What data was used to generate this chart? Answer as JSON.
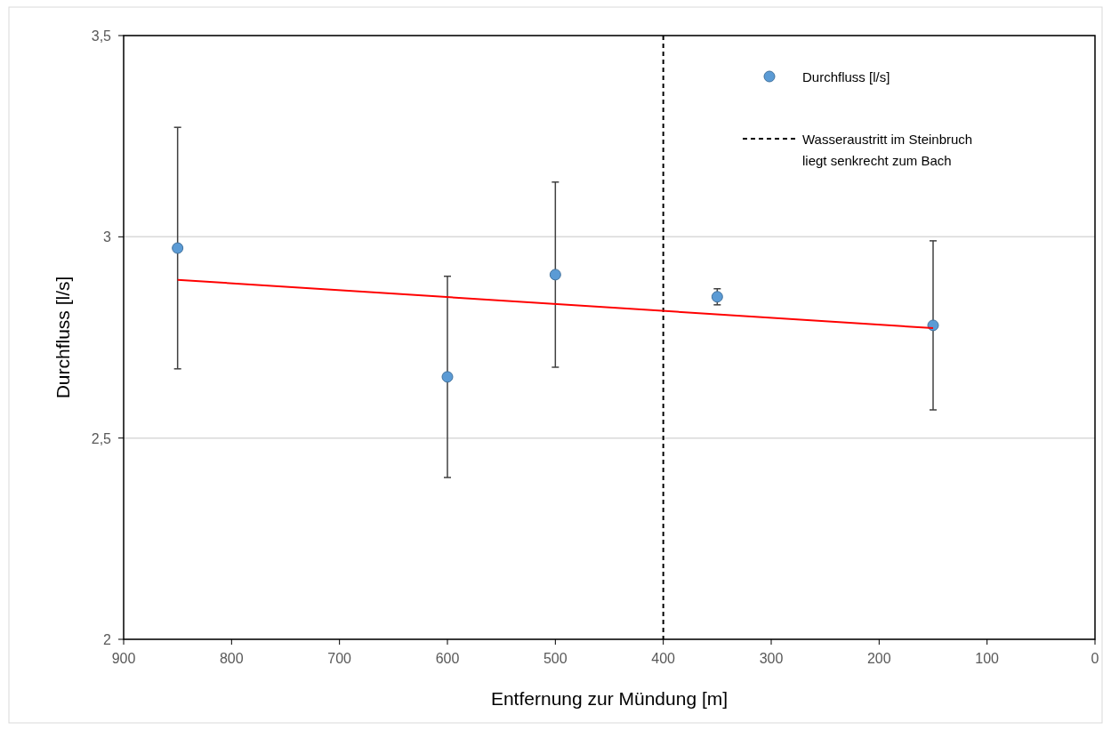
{
  "chart_data": {
    "type": "scatter",
    "xlabel": "Entfernung zur Mündung [m]",
    "ylabel": "Durchfluss [l/s]",
    "series": [
      {
        "name": "Durchfluss [l/s]",
        "marker": "circle",
        "color": "#5b9bd5",
        "x": [
          850,
          600,
          500,
          350,
          150
        ],
        "values": [
          2.972,
          2.652,
          2.906,
          2.851,
          2.78
        ],
        "errors": [
          0.3,
          0.25,
          0.23,
          0.02,
          0.21
        ]
      },
      {
        "type": "line",
        "color": "#ff0000",
        "x": [
          850,
          150
        ],
        "values": [
          2.893,
          2.773
        ]
      }
    ],
    "ref_lines": [
      {
        "axis": "x",
        "value": 400,
        "label": "Wasseraustritt im Steinbruch liegt senkrecht zum Bach",
        "color": "#000000",
        "line_style": "dashed"
      }
    ],
    "xlim": [
      900,
      0
    ],
    "xticks": [
      900,
      800,
      700,
      600,
      500,
      400,
      300,
      200,
      100,
      0
    ],
    "ylim": [
      2,
      3.5
    ],
    "yticks": [
      2,
      {
        "value": 2.5,
        "label": "2,5"
      },
      3,
      {
        "value": 3.5,
        "label": "3,5"
      }
    ],
    "grid": "y",
    "legend": "top right"
  }
}
